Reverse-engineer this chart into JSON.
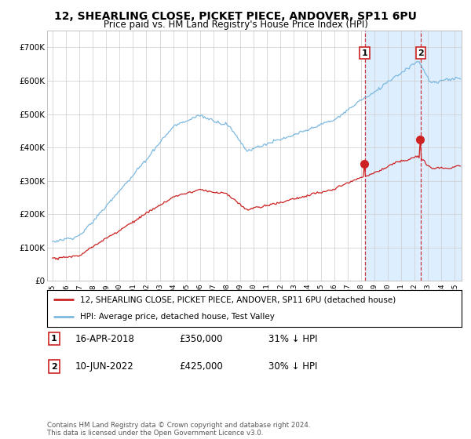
{
  "title": "12, SHEARLING CLOSE, PICKET PIECE, ANDOVER, SP11 6PU",
  "subtitle": "Price paid vs. HM Land Registry's House Price Index (HPI)",
  "ylim": [
    0,
    750000
  ],
  "yticks": [
    0,
    100000,
    200000,
    300000,
    400000,
    500000,
    600000,
    700000
  ],
  "hpi_color": "#7db9e0",
  "price_color": "#cc2222",
  "shade_color": "#ddeeff",
  "dashed_color": "#cc2222",
  "marker1_year": 2018.29,
  "marker2_year": 2022.45,
  "legend_entry1": "12, SHEARLING CLOSE, PICKET PIECE, ANDOVER, SP11 6PU (detached house)",
  "legend_entry2": "HPI: Average price, detached house, Test Valley",
  "note1_num": "1",
  "note1_date": "16-APR-2018",
  "note1_price": "£350,000",
  "note1_hpi": "31% ↓ HPI",
  "note2_num": "2",
  "note2_date": "10-JUN-2022",
  "note2_price": "£425,000",
  "note2_hpi": "30% ↓ HPI",
  "footer": "Contains HM Land Registry data © Crown copyright and database right 2024.\nThis data is licensed under the Open Government Licence v3.0.",
  "background_color": "#ffffff",
  "grid_color": "#cccccc"
}
